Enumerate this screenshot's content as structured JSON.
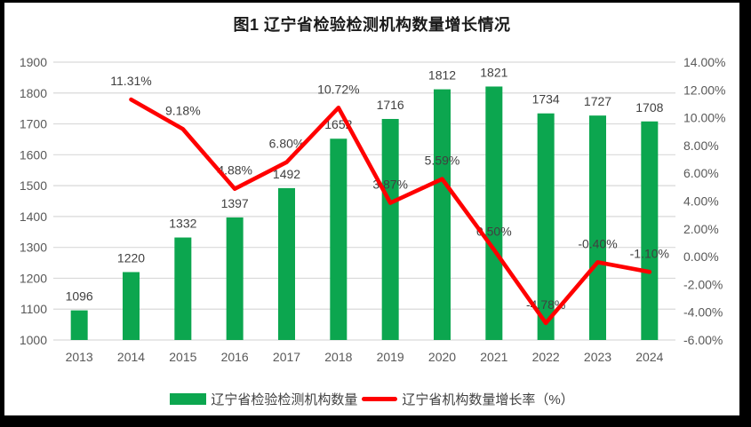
{
  "chart_data": {
    "type": "bar+line",
    "title": "图1 辽宁省检验检测机构数量增长情况",
    "categories": [
      "2013",
      "2014",
      "2015",
      "2016",
      "2017",
      "2018",
      "2019",
      "2020",
      "2021",
      "2022",
      "2023",
      "2024"
    ],
    "series": [
      {
        "name": "辽宁省检验检测机构数量",
        "type": "bar",
        "axis": "left",
        "color": "#0CA64F",
        "values": [
          1096,
          1220,
          1332,
          1397,
          1492,
          1652,
          1716,
          1812,
          1821,
          1734,
          1727,
          1708
        ],
        "labels": [
          "1096",
          "1220",
          "1332",
          "1397",
          "1492",
          "1652",
          "1716",
          "1812",
          "1821",
          "1734",
          "1727",
          "1708"
        ]
      },
      {
        "name": "辽宁省机构数量增长率（%）",
        "type": "line",
        "axis": "right",
        "color": "#FF0000",
        "values": [
          null,
          11.31,
          9.18,
          4.88,
          6.8,
          10.72,
          3.87,
          5.59,
          0.5,
          -4.78,
          -0.4,
          -1.1
        ],
        "labels": [
          "",
          "11.31%",
          "9.18%",
          "4.88%",
          "6.80%",
          "10.72%",
          "3.87%",
          "5.59%",
          "0.50%",
          "-4.78%",
          "-0.40%",
          "-1.10%"
        ]
      }
    ],
    "left_axis": {
      "min": 1000,
      "max": 1900,
      "step": 100,
      "ticks": [
        "1000",
        "1100",
        "1200",
        "1300",
        "1400",
        "1500",
        "1600",
        "1700",
        "1800",
        "1900"
      ]
    },
    "right_axis": {
      "min": -6,
      "max": 14,
      "step": 2,
      "ticks": [
        "-6.00%",
        "-4.00%",
        "-2.00%",
        "0.00%",
        "2.00%",
        "4.00%",
        "6.00%",
        "8.00%",
        "10.00%",
        "12.00%",
        "14.00%"
      ]
    },
    "grid": true,
    "legend_position": "bottom",
    "colors": {
      "gridline": "#D9D9D9",
      "axis_text": "#595959",
      "label_text": "#404040",
      "background": "#FFFFFF",
      "frame": "#000000"
    }
  }
}
